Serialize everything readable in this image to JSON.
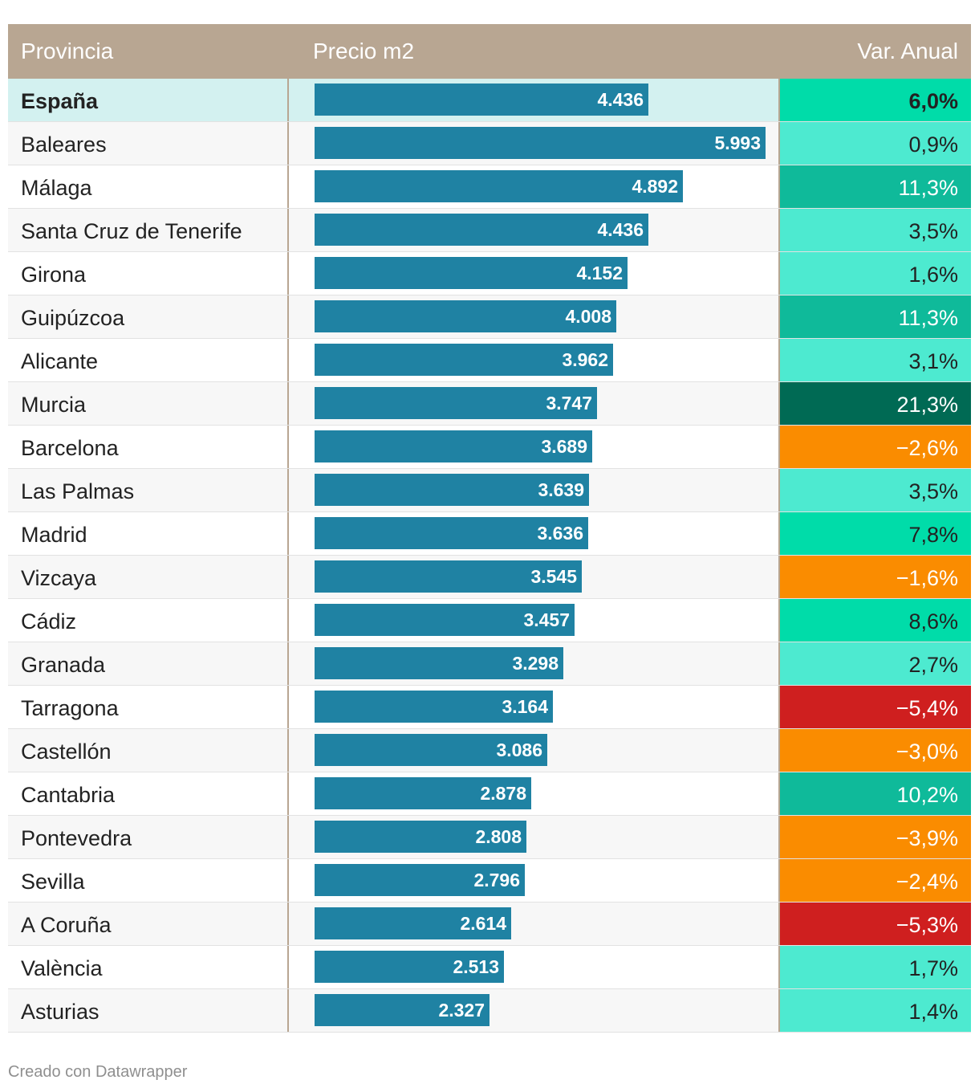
{
  "header": {
    "provincia": "Provincia",
    "precio": "Precio m2",
    "variacion": "Var. Anual"
  },
  "colors": {
    "bar": "#1f82a3",
    "header_bg": "#b8a692",
    "var_light": "#4dead0",
    "var_mid": "#00dca9",
    "var_teal": "#0fba9a",
    "var_dark": "#006a54",
    "var_orange": "#fa8c00",
    "var_red": "#cf1f1f"
  },
  "chart_data": {
    "type": "table",
    "title": "",
    "bar_max": 6500,
    "columns": [
      "Provincia",
      "Precio m2",
      "Var. Anual"
    ],
    "rows": [
      {
        "provincia": "España",
        "precio": 4436,
        "precio_label": "4.436",
        "var": 6.0,
        "var_label": "6,0%",
        "highlight": true
      },
      {
        "provincia": "Baleares",
        "precio": 5993,
        "precio_label": "5.993",
        "var": 0.9,
        "var_label": "0,9%"
      },
      {
        "provincia": "Málaga",
        "precio": 4892,
        "precio_label": "4.892",
        "var": 11.3,
        "var_label": "11,3%"
      },
      {
        "provincia": "Santa Cruz de Tenerife",
        "precio": 4436,
        "precio_label": "4.436",
        "var": 3.5,
        "var_label": "3,5%"
      },
      {
        "provincia": "Girona",
        "precio": 4152,
        "precio_label": "4.152",
        "var": 1.6,
        "var_label": "1,6%"
      },
      {
        "provincia": "Guipúzcoa",
        "precio": 4008,
        "precio_label": "4.008",
        "var": 11.3,
        "var_label": "11,3%"
      },
      {
        "provincia": "Alicante",
        "precio": 3962,
        "precio_label": "3.962",
        "var": 3.1,
        "var_label": "3,1%"
      },
      {
        "provincia": "Murcia",
        "precio": 3747,
        "precio_label": "3.747",
        "var": 21.3,
        "var_label": "21,3%"
      },
      {
        "provincia": "Barcelona",
        "precio": 3689,
        "precio_label": "3.689",
        "var": -2.6,
        "var_label": "−2,6%"
      },
      {
        "provincia": "Las Palmas",
        "precio": 3639,
        "precio_label": "3.639",
        "var": 3.5,
        "var_label": "3,5%"
      },
      {
        "provincia": "Madrid",
        "precio": 3636,
        "precio_label": "3.636",
        "var": 7.8,
        "var_label": "7,8%"
      },
      {
        "provincia": "Vizcaya",
        "precio": 3545,
        "precio_label": "3.545",
        "var": -1.6,
        "var_label": "−1,6%"
      },
      {
        "provincia": "Cádiz",
        "precio": 3457,
        "precio_label": "3.457",
        "var": 8.6,
        "var_label": "8,6%"
      },
      {
        "provincia": "Granada",
        "precio": 3298,
        "precio_label": "3.298",
        "var": 2.7,
        "var_label": "2,7%"
      },
      {
        "provincia": "Tarragona",
        "precio": 3164,
        "precio_label": "3.164",
        "var": -5.4,
        "var_label": "−5,4%"
      },
      {
        "provincia": "Castellón",
        "precio": 3086,
        "precio_label": "3.086",
        "var": -3.0,
        "var_label": "−3,0%"
      },
      {
        "provincia": "Cantabria",
        "precio": 2878,
        "precio_label": "2.878",
        "var": 10.2,
        "var_label": "10,2%"
      },
      {
        "provincia": "Pontevedra",
        "precio": 2808,
        "precio_label": "2.808",
        "var": -3.9,
        "var_label": "−3,9%"
      },
      {
        "provincia": "Sevilla",
        "precio": 2796,
        "precio_label": "2.796",
        "var": -2.4,
        "var_label": "−2,4%"
      },
      {
        "provincia": "A Coruña",
        "precio": 2614,
        "precio_label": "2.614",
        "var": -5.3,
        "var_label": "−5,3%"
      },
      {
        "provincia": "València",
        "precio": 2513,
        "precio_label": "2.513",
        "var": 1.7,
        "var_label": "1,7%"
      },
      {
        "provincia": "Asturias",
        "precio": 2327,
        "precio_label": "2.327",
        "var": 1.4,
        "var_label": "1,4%"
      }
    ]
  },
  "footer": {
    "credit": "Creado con Datawrapper"
  }
}
